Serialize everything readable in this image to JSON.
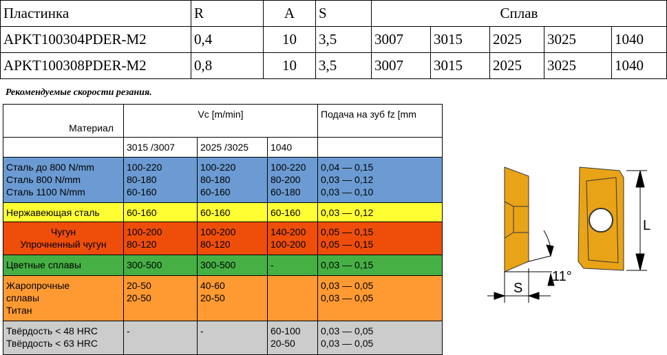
{
  "inserts": {
    "headers": [
      "Пластинка",
      "R",
      "A",
      "S",
      "Сплав"
    ],
    "rows": [
      {
        "name": "APKT100304PDER-M2",
        "r": "0,4",
        "a": "10",
        "s": "3,5",
        "grades": [
          "3007",
          "3015",
          "2025",
          "3025",
          "1040"
        ]
      },
      {
        "name": "APKT100308PDER-M2",
        "r": "0,8",
        "a": "10",
        "s": "3,5",
        "grades": [
          "3007",
          "3015",
          "2025",
          "3025",
          "1040"
        ]
      }
    ]
  },
  "caption": "Рекомендуемые скорости резания.",
  "speeds": {
    "material_header": "Материал",
    "vc_header": "Vc [m/min]",
    "feed_header": "Подача на зуб fz [mm",
    "sub": [
      "3015 /3007",
      "2025 /3025",
      "1040"
    ],
    "rows": [
      {
        "material": [
          "Сталь до 800 N/mm",
          "Сталь 800 N/mm",
          "Сталь 1100 N/mm"
        ],
        "a": [
          "100-220",
          "80-180",
          "60-160"
        ],
        "b": [
          "100-220",
          "80-180",
          "60-160"
        ],
        "c": [
          "100-220",
          "80-200",
          "60-180"
        ],
        "f": [
          "0,04 — 0,15",
          "0,03 — 0,12",
          "0,03 — 0,10"
        ]
      },
      {
        "material": [
          "Нержавеющая сталь"
        ],
        "a": [
          "60-160"
        ],
        "b": [
          "60-160"
        ],
        "c": [
          "60-160"
        ],
        "f": [
          "0,03 — 0,12"
        ]
      },
      {
        "material": [
          "Чугун",
          "Упрочненный чугун"
        ],
        "a": [
          "100-200",
          "80-120"
        ],
        "b": [
          "100-200",
          "80-120"
        ],
        "c": [
          "140-200",
          "100-200"
        ],
        "f": [
          "0,05 — 0,15",
          "0,05 — 0,15"
        ]
      },
      {
        "material": [
          "Цветные сплавы"
        ],
        "a": [
          "300-500"
        ],
        "b": [
          "300-500"
        ],
        "c": [
          "-"
        ],
        "f": [
          "0,03 — 0,15"
        ]
      },
      {
        "material": [
          "Жаропрочные",
          "сплавы",
          "Титан"
        ],
        "a": [
          "20-50",
          "20-50"
        ],
        "b": [
          "40-60",
          "20-50"
        ],
        "c": [],
        "f": [
          "0,03 — 0,05",
          "0,03 — 0,05"
        ]
      },
      {
        "material": [
          "Твёрдость < 48 HRC",
          "Твёрдость < 63 HRC"
        ],
        "a": [
          "-"
        ],
        "b": [
          "-"
        ],
        "c": [
          "60-100",
          "20-50"
        ],
        "f": [
          "0,03 — 0,05",
          "0,03 — 0,05"
        ]
      }
    ]
  },
  "drawing": {
    "s_label": "S",
    "angle_label": "11°",
    "l_label": "L"
  }
}
